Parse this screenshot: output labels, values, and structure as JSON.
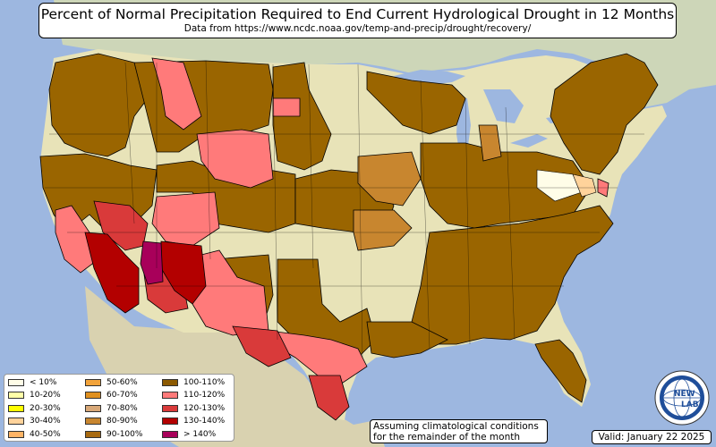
{
  "header": {
    "title": "Percent of Normal Precipitation Required to End Current Hydrological Drought in 12 Months",
    "subtitle": "Data from https://www.ncdc.noaa.gov/temp-and-precip/drought/recovery/"
  },
  "legend": {
    "items": [
      {
        "label": "< 10%",
        "color": "#fffde8"
      },
      {
        "label": "10-20%",
        "color": "#ffffa8"
      },
      {
        "label": "20-30%",
        "color": "#ffff00"
      },
      {
        "label": "30-40%",
        "color": "#ffd39b"
      },
      {
        "label": "40-50%",
        "color": "#ffb466"
      },
      {
        "label": "50-60%",
        "color": "#f2a33a"
      },
      {
        "label": "60-70%",
        "color": "#e0901f"
      },
      {
        "label": "70-80%",
        "color": "#d8a878"
      },
      {
        "label": "80-90%",
        "color": "#c8862f"
      },
      {
        "label": "90-100%",
        "color": "#a86a10"
      },
      {
        "label": "100-110%",
        "color": "#8c5a00"
      },
      {
        "label": "110-120%",
        "color": "#ff7a7a"
      },
      {
        "label": "120-130%",
        "color": "#d93a3a"
      },
      {
        "label": "130-140%",
        "color": "#b30000"
      },
      {
        "label": "> 140%",
        "color": "#a8005a"
      }
    ]
  },
  "note": {
    "line1": "Assuming climatological conditions",
    "line2": "for the remainder of the month"
  },
  "valid": "Valid: January 22 2025",
  "logo": {
    "text": "NEW LAB",
    "icon": "globe-logo-icon"
  },
  "colors": {
    "ocean": "#9db7e0",
    "land": "#e8e3b8",
    "drought_brown": "#9a6500",
    "pink": "#ff7a7a",
    "red": "#d93a3a",
    "darkred": "#b30000",
    "magenta": "#a8005a",
    "tan": "#c8862f"
  }
}
